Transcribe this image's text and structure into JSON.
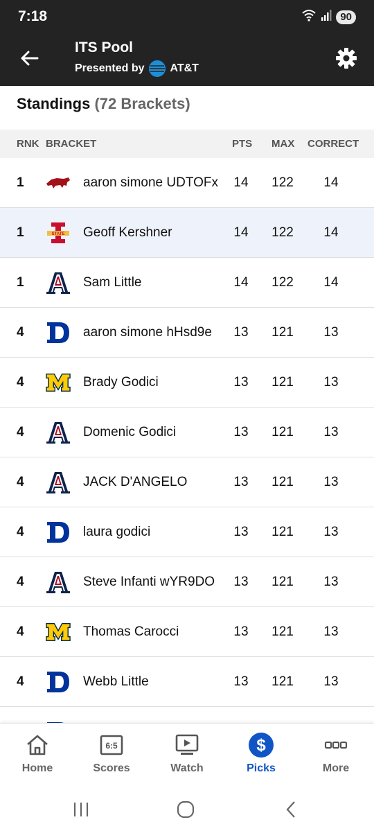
{
  "status": {
    "time": "7:18",
    "battery": "90",
    "wifi_label": "5"
  },
  "app_bar": {
    "title": "ITS Pool",
    "subtitle_prefix": "Presented by",
    "sponsor": "AT&T"
  },
  "standings": {
    "heading": "Standings",
    "count": "(72 Brackets)",
    "columns": {
      "rnk": "RNK",
      "bracket": "BRACKET",
      "pts": "PTS",
      "max": "MAX",
      "correct": "CORRECT"
    },
    "rows": [
      {
        "rnk": "1",
        "team_icon": "arkansas-razorback-logo",
        "name": "aaron simone UDTOFx",
        "pts": "14",
        "max": "122",
        "correct": "14"
      },
      {
        "rnk": "1",
        "team_icon": "iowa-state-logo",
        "name": "Geoff Kershner",
        "pts": "14",
        "max": "122",
        "correct": "14"
      },
      {
        "rnk": "1",
        "team_icon": "arizona-logo",
        "name": "Sam Little",
        "pts": "14",
        "max": "122",
        "correct": "14"
      },
      {
        "rnk": "4",
        "team_icon": "duke-logo",
        "name": "aaron simone hHsd9e",
        "pts": "13",
        "max": "121",
        "correct": "13"
      },
      {
        "rnk": "4",
        "team_icon": "michigan-logo",
        "name": "Brady Godici",
        "pts": "13",
        "max": "121",
        "correct": "13"
      },
      {
        "rnk": "4",
        "team_icon": "arizona-logo",
        "name": "Domenic Godici",
        "pts": "13",
        "max": "121",
        "correct": "13"
      },
      {
        "rnk": "4",
        "team_icon": "arizona-logo",
        "name": "JACK D'ANGELO",
        "pts": "13",
        "max": "121",
        "correct": "13"
      },
      {
        "rnk": "4",
        "team_icon": "duke-logo",
        "name": "laura godici",
        "pts": "13",
        "max": "121",
        "correct": "13"
      },
      {
        "rnk": "4",
        "team_icon": "arizona-logo",
        "name": "Steve Infanti wYR9DO",
        "pts": "13",
        "max": "121",
        "correct": "13"
      },
      {
        "rnk": "4",
        "team_icon": "michigan-logo",
        "name": "Thomas Carocci",
        "pts": "13",
        "max": "121",
        "correct": "13"
      },
      {
        "rnk": "4",
        "team_icon": "duke-logo",
        "name": "Webb Little",
        "pts": "13",
        "max": "121",
        "correct": "13"
      }
    ]
  },
  "bottom_nav": {
    "items": [
      {
        "label": "Home",
        "icon": "home-icon"
      },
      {
        "label": "Scores",
        "icon": "scores-icon",
        "icon_text": "6:5"
      },
      {
        "label": "Watch",
        "icon": "watch-icon"
      },
      {
        "label": "Picks",
        "icon": "picks-icon",
        "active": true
      },
      {
        "label": "More",
        "icon": "more-icon"
      }
    ]
  },
  "colors": {
    "app_bar": "#232323",
    "accent": "#1055c6",
    "highlight_row": "#eef3fb"
  }
}
